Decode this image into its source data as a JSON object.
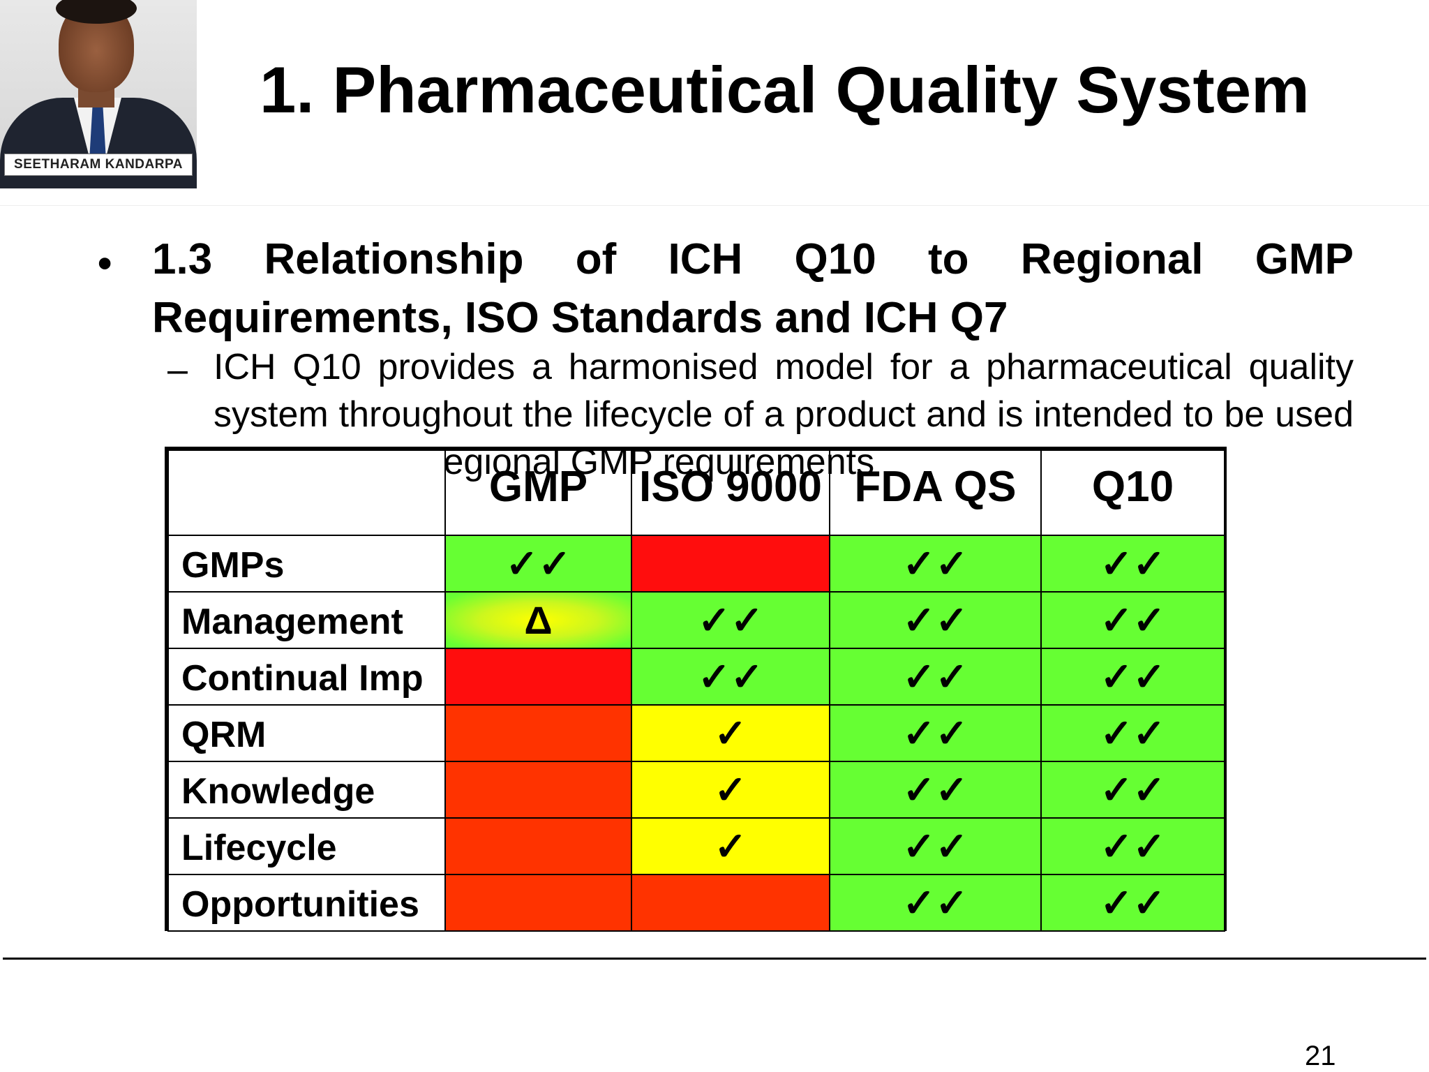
{
  "presenter": {
    "name": "SEETHARAM KANDARPA"
  },
  "slide": {
    "title": "1. Pharmaceutical Quality System",
    "bullet": "•",
    "heading_line1": "1.3 Relationship of ICH Q10 to Regional GMP",
    "heading_line2": "Requirements, ISO Standards and ICH Q7",
    "dash": "–",
    "subtext": "ICH Q10 provides a harmonised model for a pharmaceutical quality system throughout the lifecycle of a product and is intended to be used together with regional GMP requirements",
    "page_number": "21"
  },
  "table": {
    "columns": [
      "",
      "GMP",
      "ISO 9000",
      "FDA QS",
      "Q10"
    ],
    "rows": [
      {
        "label": "GMPs",
        "cells": [
          {
            "mark": "✓✓",
            "color": "green"
          },
          {
            "mark": "",
            "color": "red"
          },
          {
            "mark": "✓✓",
            "color": "green"
          },
          {
            "mark": "✓✓",
            "color": "green"
          }
        ]
      },
      {
        "label": "Management",
        "cells": [
          {
            "mark": "Δ",
            "color": "gradient"
          },
          {
            "mark": "✓✓",
            "color": "green"
          },
          {
            "mark": "✓✓",
            "color": "green"
          },
          {
            "mark": "✓✓",
            "color": "green"
          }
        ]
      },
      {
        "label": "Continual Imp",
        "cells": [
          {
            "mark": "",
            "color": "red"
          },
          {
            "mark": "✓✓",
            "color": "green"
          },
          {
            "mark": "✓✓",
            "color": "green"
          },
          {
            "mark": "✓✓",
            "color": "green"
          }
        ]
      },
      {
        "label": "QRM",
        "cells": [
          {
            "mark": "",
            "color": "orange"
          },
          {
            "mark": "✓",
            "color": "yellow"
          },
          {
            "mark": "✓✓",
            "color": "green"
          },
          {
            "mark": "✓✓",
            "color": "green"
          }
        ]
      },
      {
        "label": "Knowledge",
        "cells": [
          {
            "mark": "",
            "color": "orange"
          },
          {
            "mark": "✓",
            "color": "yellow"
          },
          {
            "mark": "✓✓",
            "color": "green"
          },
          {
            "mark": "✓✓",
            "color": "green"
          }
        ]
      },
      {
        "label": "Lifecycle",
        "cells": [
          {
            "mark": "",
            "color": "orange"
          },
          {
            "mark": "✓",
            "color": "yellow"
          },
          {
            "mark": "✓✓",
            "color": "green"
          },
          {
            "mark": "✓✓",
            "color": "green"
          }
        ]
      },
      {
        "label": "Opportunities",
        "cells": [
          {
            "mark": "",
            "color": "orange"
          },
          {
            "mark": "",
            "color": "orange"
          },
          {
            "mark": "✓✓",
            "color": "green"
          },
          {
            "mark": "✓✓",
            "color": "green"
          }
        ]
      }
    ]
  },
  "colors": {
    "green": "#66ff33",
    "red": "#ff0d0d",
    "orange": "#ff3300",
    "yellow": "#ffff00"
  }
}
